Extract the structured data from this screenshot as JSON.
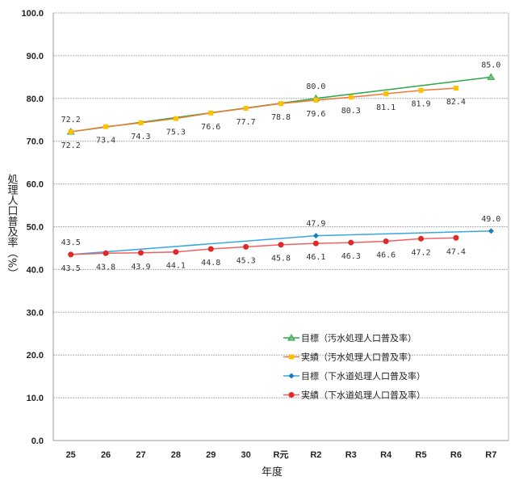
{
  "chart_data": {
    "type": "line",
    "xlabel": "年度",
    "ylabel": "処理人口普及率（%）",
    "ylim": [
      0,
      100
    ],
    "yticks": [
      "0.0",
      "10.0",
      "20.0",
      "30.0",
      "40.0",
      "50.0",
      "60.0",
      "70.0",
      "80.0",
      "90.0",
      "100.0"
    ],
    "categories": [
      "25",
      "26",
      "27",
      "28",
      "29",
      "30",
      "R元",
      "R2",
      "R3",
      "R4",
      "R5",
      "R6",
      "R7"
    ],
    "grid": true,
    "legend_position": "center-right",
    "series": [
      {
        "name": "目標（汚水処理人口普及率）",
        "color": "#2aa84a",
        "marker": "triangle",
        "label_pos": "above",
        "points": [
          {
            "x": "25",
            "y": 72.2
          },
          {
            "x": "R2",
            "y": 80.0
          },
          {
            "x": "R7",
            "y": 85.0
          }
        ]
      },
      {
        "name": "実績（汚水処理人口普及率）",
        "color": "#f07a30",
        "marker_color": "#ffc000",
        "marker": "square",
        "label_pos": "below",
        "points": [
          {
            "x": "25",
            "y": 72.2
          },
          {
            "x": "26",
            "y": 73.4
          },
          {
            "x": "27",
            "y": 74.3
          },
          {
            "x": "28",
            "y": 75.3
          },
          {
            "x": "29",
            "y": 76.6
          },
          {
            "x": "30",
            "y": 77.7
          },
          {
            "x": "R元",
            "y": 78.8
          },
          {
            "x": "R2",
            "y": 79.6
          },
          {
            "x": "R3",
            "y": 80.3
          },
          {
            "x": "R4",
            "y": 81.1
          },
          {
            "x": "R5",
            "y": 81.9
          },
          {
            "x": "R6",
            "y": 82.4
          }
        ]
      },
      {
        "name": "目標（下水道処理人口普及率）",
        "color": "#3aa8e0",
        "marker_color": "#1a7cc0",
        "marker": "diamond",
        "label_pos": "above",
        "points": [
          {
            "x": "25",
            "y": 43.5
          },
          {
            "x": "R2",
            "y": 47.9
          },
          {
            "x": "R7",
            "y": 49.0
          }
        ]
      },
      {
        "name": "実績（下水道処理人口普及率）",
        "color": "#f06060",
        "marker_color": "#e02828",
        "marker": "circle",
        "label_pos": "below",
        "points": [
          {
            "x": "25",
            "y": 43.5
          },
          {
            "x": "26",
            "y": 43.8
          },
          {
            "x": "27",
            "y": 43.9
          },
          {
            "x": "28",
            "y": 44.1
          },
          {
            "x": "29",
            "y": 44.8
          },
          {
            "x": "30",
            "y": 45.3
          },
          {
            "x": "R元",
            "y": 45.8
          },
          {
            "x": "R2",
            "y": 46.1
          },
          {
            "x": "R3",
            "y": 46.3
          },
          {
            "x": "R4",
            "y": 46.6
          },
          {
            "x": "R5",
            "y": 47.2
          },
          {
            "x": "R6",
            "y": 47.4
          }
        ]
      }
    ]
  }
}
